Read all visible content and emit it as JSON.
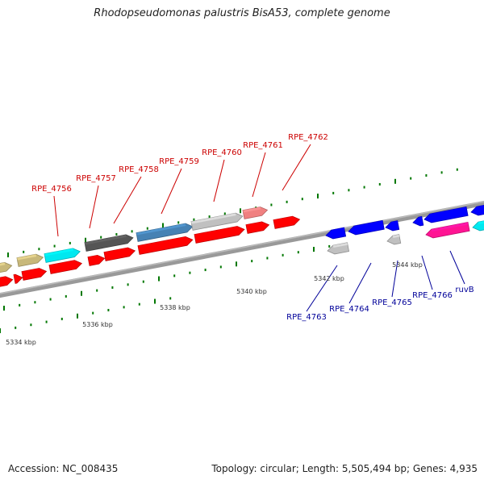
{
  "header": {
    "title": "Rhodopseudomonas palustris BisA53, complete genome"
  },
  "footer": {
    "accession": "Accession: NC_008435",
    "stats": "Topology: circular; Length: 5,505,494 bp; Genes: 4,935"
  },
  "colors": {
    "forward_label": "#cc0000",
    "reverse_label": "#000099",
    "backbone": "#888888",
    "tick": "#007700"
  },
  "ruler_labels": [
    {
      "text": "5334 kbp"
    },
    {
      "text": "5336 kbp"
    },
    {
      "text": "5338 kbp"
    },
    {
      "text": "5340 kbp"
    },
    {
      "text": "5342 kbp"
    },
    {
      "text": "5344 kbp"
    }
  ],
  "forward_genes": [
    {
      "label": "RPE_4756",
      "color": "#00e8f0"
    },
    {
      "label": "RPE_4757",
      "color": "#555555"
    },
    {
      "label": "RPE_4758",
      "color": "#555555"
    },
    {
      "label": "RPE_4759",
      "color": "#4682b4"
    },
    {
      "label": "RPE_4760",
      "color": "#c0c0c0"
    },
    {
      "label": "RPE_4761",
      "color": "#f08080"
    },
    {
      "label": "RPE_4762",
      "color": "#ff0000"
    }
  ],
  "reverse_genes": [
    {
      "label": "RPE_4763",
      "color": "#c0c0c0"
    },
    {
      "label": "RPE_4764",
      "color": "#0000ff"
    },
    {
      "label": "RPE_4765",
      "color": "#c0c0c0"
    },
    {
      "label": "RPE_4766",
      "color": "#ff1493"
    },
    {
      "label": "ruvB",
      "color": "#0000ff"
    }
  ]
}
